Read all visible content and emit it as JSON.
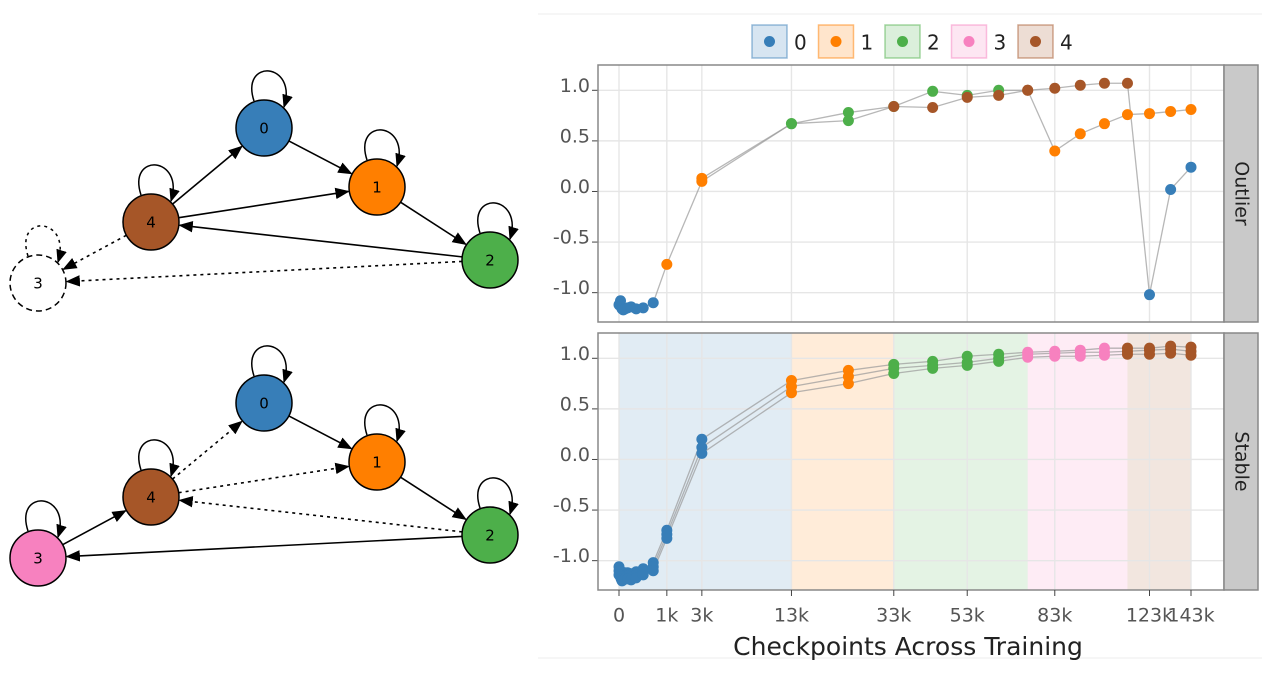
{
  "diagrams": [
    {
      "nodes": [
        "0",
        "1",
        "2",
        "3",
        "4"
      ]
    },
    {
      "nodes": [
        "0",
        "1",
        "2",
        "3",
        "4"
      ]
    }
  ],
  "chart_data": {
    "type": "line",
    "x_label": "Checkpoints Across Training",
    "xscale": "sqrt",
    "xlim": [
      0,
      143000
    ],
    "xticks": [
      0,
      {
        "value": 1000,
        "label": "1k"
      },
      {
        "value": 3000,
        "label": "3k"
      },
      {
        "value": 13000,
        "label": "13k"
      },
      {
        "value": 33000,
        "label": "33k"
      },
      {
        "value": 53000,
        "label": "53k"
      },
      {
        "value": 83000,
        "label": "83k"
      },
      {
        "value": 123000,
        "label": "123k"
      },
      {
        "value": 143000,
        "label": "143k"
      }
    ],
    "ylim": [
      -1.29,
      1.25
    ],
    "yticks": [
      {
        "value": -1,
        "label": "-1.0"
      },
      -0.5,
      {
        "value": 0,
        "label": "0.0"
      },
      0.5,
      {
        "value": 1,
        "label": "1.0"
      }
    ],
    "grid": true,
    "legend": "top",
    "series": [
      {
        "name": "0",
        "color": "#377eb8"
      },
      {
        "name": "1",
        "color": "#ff7f00"
      },
      {
        "name": "2",
        "color": "#4daf4a"
      },
      {
        "name": "3",
        "color": "#f781bf"
      },
      {
        "name": "4",
        "color": "#a65628"
      }
    ],
    "panels": [
      {
        "name": "Outlier",
        "regions": [],
        "traces": [
          {
            "x": [
              0,
              1,
              2,
              4,
              8,
              16,
              32,
              64,
              128,
              256,
              512,
              1000,
              3000,
              13000,
              23000,
              33000,
              43000,
              53000,
              63000,
              73000,
              83000,
              93000,
              103000,
              113000,
              123000,
              133000,
              143000
            ],
            "values": [
              -1.12,
              -1.08,
              -1.14,
              -1.16,
              -1.17,
              -1.16,
              -1.15,
              -1.14,
              -1.16,
              -1.15,
              -1.1,
              -0.72,
              0.1,
              0.67,
              0.78,
              0.84,
              0.99,
              0.95,
              1.0,
              1.0,
              0.4,
              0.57,
              0.67,
              0.76,
              0.77,
              0.79,
              0.81
            ],
            "clusters": [
              0,
              0,
              0,
              0,
              0,
              0,
              0,
              0,
              0,
              0,
              0,
              1,
              1,
              2,
              2,
              2,
              2,
              2,
              2,
              4,
              1,
              1,
              1,
              1,
              1,
              1,
              1
            ]
          },
          {
            "x": [
              3000,
              13000,
              23000,
              33000,
              43000,
              53000,
              63000,
              73000,
              83000,
              93000,
              103000,
              113000,
              123000,
              133000,
              143000
            ],
            "values": [
              0.13,
              0.67,
              0.7,
              0.84,
              0.83,
              0.93,
              0.95,
              1.0,
              1.02,
              1.05,
              1.07,
              1.07,
              -1.02,
              0.02,
              0.24
            ],
            "clusters": [
              1,
              2,
              2,
              4,
              4,
              4,
              4,
              4,
              4,
              4,
              4,
              4,
              0,
              0,
              0
            ]
          }
        ]
      },
      {
        "name": "Stable",
        "regions": [
          {
            "cluster": 0,
            "start": 0,
            "end": 13000
          },
          {
            "cluster": 1,
            "start": 13000,
            "end": 33000
          },
          {
            "cluster": 2,
            "start": 33000,
            "end": 73000
          },
          {
            "cluster": 3,
            "start": 73000,
            "end": 113000
          },
          {
            "cluster": 4,
            "start": 113000,
            "end": 143000
          }
        ],
        "traces": [
          {
            "x": [
              0,
              1,
              2,
              4,
              8,
              16,
              32,
              64,
              128,
              256,
              512,
              1000,
              3000,
              13000,
              23000,
              33000,
              43000,
              53000,
              63000,
              73000,
              83000,
              93000,
              103000,
              113000,
              123000,
              133000,
              143000
            ],
            "values": [
              -1.06,
              -1.1,
              -1.12,
              -1.14,
              -1.13,
              -1.12,
              -1.12,
              -1.13,
              -1.11,
              -1.08,
              -1.02,
              -0.7,
              0.2,
              0.78,
              0.88,
              0.94,
              0.97,
              1.02,
              1.04,
              1.06,
              1.07,
              1.08,
              1.1,
              1.1,
              1.1,
              1.12,
              1.11
            ],
            "clusters": [
              0,
              0,
              0,
              0,
              0,
              0,
              0,
              0,
              0,
              0,
              0,
              0,
              0,
              1,
              1,
              2,
              2,
              2,
              2,
              3,
              3,
              3,
              3,
              4,
              4,
              4,
              4
            ]
          },
          {
            "x": [
              0,
              1,
              2,
              4,
              8,
              16,
              32,
              64,
              128,
              256,
              512,
              1000,
              3000,
              13000,
              23000,
              33000,
              43000,
              53000,
              63000,
              73000,
              83000,
              93000,
              103000,
              113000,
              123000,
              133000,
              143000
            ],
            "values": [
              -1.1,
              -1.13,
              -1.15,
              -1.17,
              -1.16,
              -1.15,
              -1.15,
              -1.16,
              -1.14,
              -1.11,
              -1.06,
              -0.74,
              0.12,
              0.72,
              0.82,
              0.9,
              0.93,
              0.96,
              1.0,
              1.04,
              1.05,
              1.06,
              1.06,
              1.07,
              1.08,
              1.09,
              1.07
            ],
            "clusters": [
              0,
              0,
              0,
              0,
              0,
              0,
              0,
              0,
              0,
              0,
              0,
              0,
              0,
              1,
              1,
              2,
              2,
              2,
              2,
              3,
              3,
              3,
              3,
              4,
              4,
              4,
              4
            ]
          },
          {
            "x": [
              0,
              1,
              2,
              4,
              8,
              16,
              32,
              64,
              128,
              256,
              512,
              1000,
              3000,
              13000,
              23000,
              33000,
              43000,
              53000,
              63000,
              73000,
              83000,
              93000,
              103000,
              113000,
              123000,
              133000,
              143000
            ],
            "values": [
              -1.14,
              -1.16,
              -1.18,
              -1.2,
              -1.19,
              -1.18,
              -1.18,
              -1.19,
              -1.17,
              -1.14,
              -1.1,
              -0.78,
              0.06,
              0.66,
              0.75,
              0.85,
              0.9,
              0.93,
              0.97,
              1.01,
              1.02,
              1.02,
              1.03,
              1.04,
              1.04,
              1.05,
              1.03
            ],
            "clusters": [
              0,
              0,
              0,
              0,
              0,
              0,
              0,
              0,
              0,
              0,
              0,
              0,
              0,
              1,
              1,
              2,
              2,
              2,
              2,
              3,
              3,
              3,
              3,
              4,
              4,
              4,
              4
            ]
          }
        ]
      }
    ]
  }
}
